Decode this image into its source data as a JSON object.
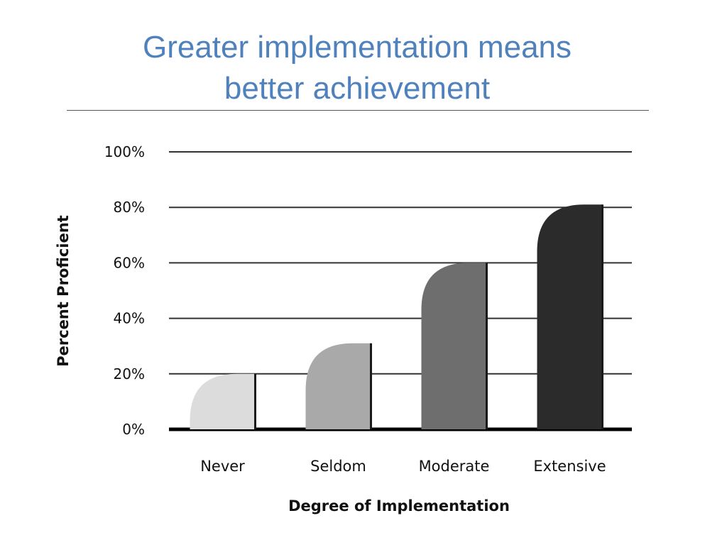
{
  "slide": {
    "title_line1": "Greater implementation means",
    "title_line2": "better achievement",
    "title_color": "#4f81bd"
  },
  "chart_data": {
    "type": "bar",
    "title": "",
    "xlabel": "Degree of Implementation",
    "ylabel": "Percent Proficient",
    "categories": [
      "Never",
      "Seldom",
      "Moderate",
      "Extensive"
    ],
    "values": [
      20,
      31,
      60,
      81
    ],
    "ylim": [
      0,
      100
    ],
    "yticks": [
      "0%",
      "20%",
      "40%",
      "60%",
      "80%",
      "100%"
    ],
    "ytick_values": [
      0,
      20,
      40,
      60,
      80,
      100
    ],
    "grid": true,
    "legend": "none",
    "bar_colors": [
      "#dcdcdc",
      "#a9a9a9",
      "#6e6e6e",
      "#2b2b2b"
    ]
  }
}
